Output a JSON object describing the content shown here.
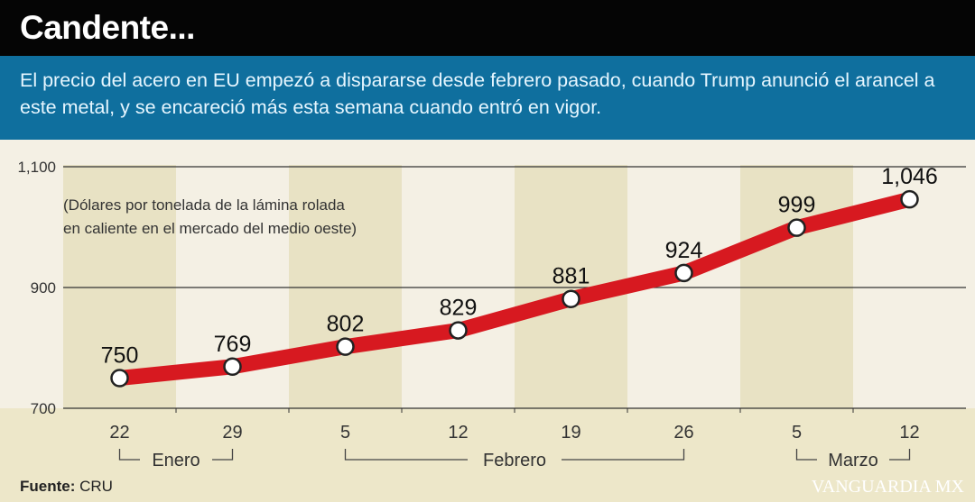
{
  "header": {
    "title": "Candente..."
  },
  "subtitle": "El precio del acero en EU empezó a dispararse desde febrero pasado, cuando Trump anunció el arancel a este metal, y se encareció más esta semana cuando entró en vigor.",
  "source": {
    "label": "Fuente:",
    "value": "CRU"
  },
  "watermark": "VANGUARDIA MX",
  "chart_data": {
    "type": "line",
    "title": "",
    "ylabel": "",
    "note": [
      "(Dólares por tonelada de la lámina rolada",
      "en caliente en el mercado del medio oeste)"
    ],
    "ylim": [
      700,
      1100
    ],
    "yticks": [
      700,
      900,
      1100
    ],
    "ytick_labels": [
      "700",
      "900",
      "1,100"
    ],
    "categories": [
      "22",
      "29",
      "5",
      "12",
      "19",
      "26",
      "5",
      "12"
    ],
    "months": [
      {
        "label": "Enero",
        "from": 0,
        "to": 1
      },
      {
        "label": "Febrero",
        "from": 2,
        "to": 5
      },
      {
        "label": "Marzo",
        "from": 6,
        "to": 7
      }
    ],
    "values": [
      750,
      769,
      802,
      829,
      881,
      924,
      999,
      1046
    ],
    "value_labels": [
      "750",
      "769",
      "802",
      "829",
      "881",
      "924",
      "999",
      "1,046"
    ],
    "grid": true,
    "colors": {
      "line": "#d71920",
      "band": "#e8e2c4",
      "background": "#f4f0e4",
      "header": "#050505",
      "subheader": "#0f6f9e"
    }
  }
}
